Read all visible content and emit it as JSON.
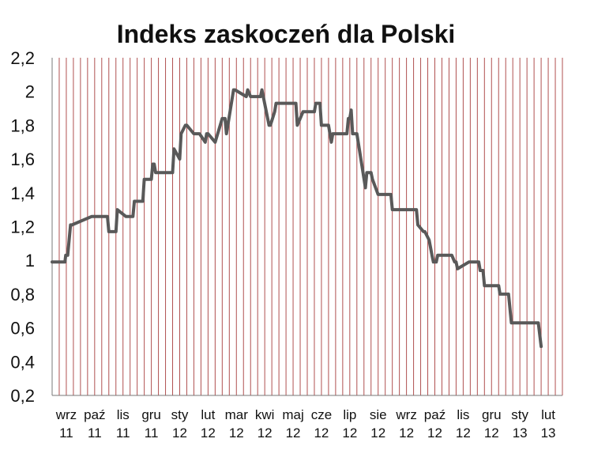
{
  "chart_data": {
    "type": "line",
    "title": "Indeks zaskoczeń dla Polski",
    "xlabel": "",
    "ylabel": "",
    "ylim": [
      0.2,
      2.2
    ],
    "y_ticks": [
      "0,2",
      "0,4",
      "0,6",
      "0,8",
      "1",
      "1,2",
      "1,4",
      "1,6",
      "1,8",
      "2",
      "2,2"
    ],
    "y_tick_values": [
      0.2,
      0.4,
      0.6,
      0.8,
      1.0,
      1.2,
      1.4,
      1.6,
      1.8,
      2.0,
      2.2
    ],
    "x_ticks": [
      {
        "month": "wrz",
        "year": "11"
      },
      {
        "month": "paź",
        "year": "11"
      },
      {
        "month": "lis",
        "year": "11"
      },
      {
        "month": "gru",
        "year": "11"
      },
      {
        "month": "sty",
        "year": "12"
      },
      {
        "month": "lut",
        "year": "12"
      },
      {
        "month": "mar",
        "year": "12"
      },
      {
        "month": "kwi",
        "year": "12"
      },
      {
        "month": "maj",
        "year": "12"
      },
      {
        "month": "cze",
        "year": "12"
      },
      {
        "month": "lip",
        "year": "12"
      },
      {
        "month": "sie",
        "year": "12"
      },
      {
        "month": "wrz",
        "year": "12"
      },
      {
        "month": "paź",
        "year": "12"
      },
      {
        "month": "lis",
        "year": "12"
      },
      {
        "month": "gru",
        "year": "12"
      },
      {
        "month": "sty",
        "year": "13"
      },
      {
        "month": "lut",
        "year": "13"
      }
    ],
    "grid": "vertical",
    "grid_color": "#b05050",
    "line_color": "#595959",
    "series": [
      {
        "x": [
          0,
          0.45,
          0.48,
          0.55,
          0.6,
          0.65,
          0.7,
          1.4,
          1.45,
          1.6,
          1.65,
          1.95,
          2.0,
          2.25,
          2.3,
          2.6,
          2.65,
          2.85,
          2.9,
          3.15,
          3.2,
          3.25,
          3.3,
          3.5,
          3.55,
          3.6,
          3.65,
          3.8,
          4.25,
          4.3,
          4.5,
          4.55,
          4.7,
          4.75,
          5.0,
          5.05,
          5.15,
          5.2,
          5.4,
          5.45,
          5.5,
          5.75,
          6.0,
          6.05,
          6.1,
          6.15,
          6.4,
          6.45,
          6.85,
          6.9,
          7.0,
          7.05,
          7.35,
          7.4,
          7.65,
          7.7,
          7.85,
          7.9,
          7.95,
          8.2,
          8.25,
          8.6,
          8.65,
          8.85,
          8.9,
          9.25,
          9.3,
          9.35,
          9.45,
          9.5,
          9.55,
          9.6,
          9.75,
          9.85,
          9.9,
          10.4,
          10.45,
          10.5,
          10.55,
          10.6,
          10.75,
          11.05,
          11.1,
          11.25,
          11.3,
          11.5,
          11.55,
          11.95,
          12.0,
          12.8,
          12.85,
          12.9,
          13.1,
          13.15,
          13.3,
          13.4,
          13.45,
          13.55,
          13.6,
          14.05,
          14.1,
          14.2,
          14.25,
          14.3,
          14.7,
          15.05,
          15.1,
          15.2,
          15.25,
          15.3,
          15.4,
          15.55,
          15.6,
          15.75,
          15.8,
          16.1,
          16.2,
          16.6,
          16.65,
          16.9,
          16.95,
          17.15,
          17.25
        ],
        "y": [
          0.99,
          0.99,
          1.03,
          1.03,
          1.12,
          1.21,
          1.21,
          1.26,
          1.26,
          1.26,
          1.26,
          1.26,
          1.17,
          1.17,
          1.3,
          1.26,
          1.26,
          1.26,
          1.35,
          1.35,
          1.35,
          1.48,
          1.48,
          1.48,
          1.57,
          1.57,
          1.52,
          1.52,
          1.52,
          1.66,
          1.6,
          1.75,
          1.8,
          1.8,
          1.75,
          1.75,
          1.75,
          1.75,
          1.7,
          1.75,
          1.75,
          1.7,
          1.84,
          1.84,
          1.84,
          1.75,
          2.01,
          2.01,
          1.97,
          2.01,
          1.97,
          1.97,
          1.97,
          2.01,
          1.8,
          1.8,
          1.88,
          1.93,
          1.93,
          1.93,
          1.93,
          1.93,
          1.8,
          1.88,
          1.88,
          1.88,
          1.93,
          1.93,
          1.93,
          1.8,
          1.8,
          1.8,
          1.8,
          1.7,
          1.75,
          1.75,
          1.84,
          1.84,
          1.89,
          1.75,
          1.75,
          1.43,
          1.52,
          1.52,
          1.48,
          1.39,
          1.39,
          1.39,
          1.3,
          1.3,
          1.3,
          1.21,
          1.17,
          1.17,
          1.12,
          1.03,
          0.99,
          0.99,
          1.03,
          1.03,
          1.03,
          0.99,
          0.99,
          0.95,
          0.99,
          0.99,
          0.94,
          0.94,
          0.85,
          0.85,
          0.85,
          0.85,
          0.85,
          0.85,
          0.8,
          0.8,
          0.63,
          0.63,
          0.63,
          0.63,
          0.63,
          0.63,
          0.49
        ]
      }
    ]
  }
}
